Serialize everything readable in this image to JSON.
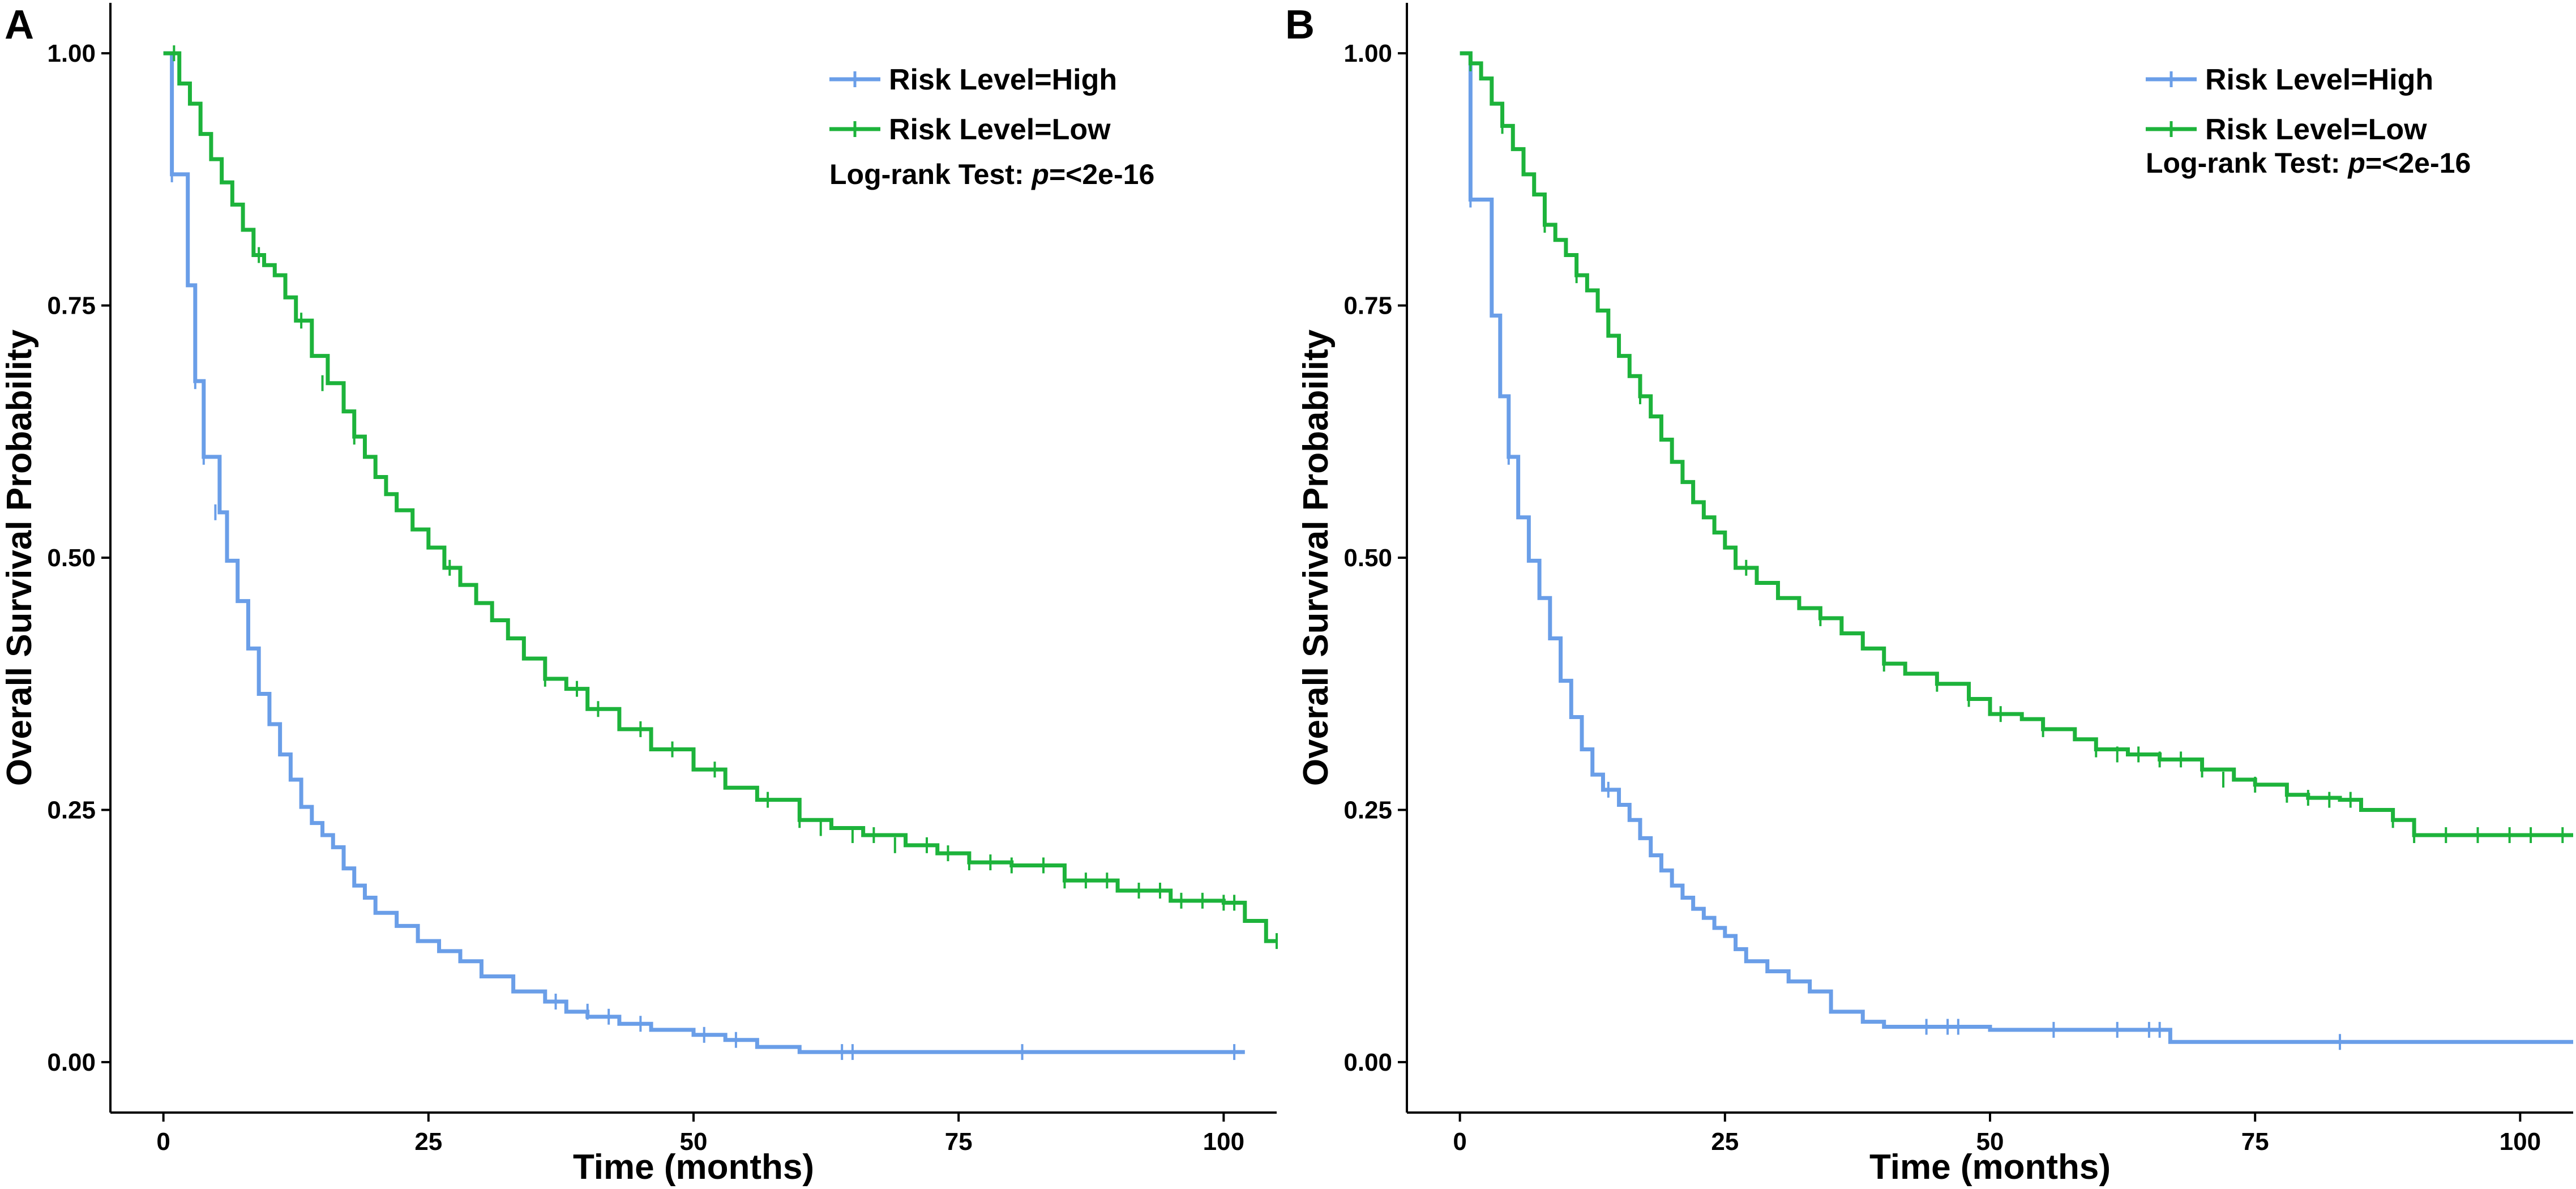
{
  "chart_data": [
    {
      "panel": "A",
      "type": "line",
      "subtype": "kaplan-meier step",
      "xlabel": "Time (months)",
      "ylabel": "Overall Survival Probability",
      "xlim": [
        -5,
        105
      ],
      "ylim": [
        -0.05,
        1.05
      ],
      "xticks": [
        0,
        25,
        50,
        75,
        100
      ],
      "xtick_labels": [
        "0",
        "25",
        "50",
        "75",
        "100"
      ],
      "yticks": [
        0.0,
        0.25,
        0.5,
        0.75,
        1.0
      ],
      "ytick_labels": [
        "0.00",
        "0.25",
        "0.50",
        "0.75",
        "1.00"
      ],
      "legend_position": "top-right",
      "annotation": {
        "prefix": "Log-rank Test: ",
        "p_symbol": "p",
        "value": "=<2e-16"
      },
      "series": [
        {
          "name": "Risk Level=High",
          "color": "#6a9ee8",
          "x": [
            0,
            0.8,
            1.5,
            2.3,
            3,
            3.8,
            4.5,
            5.3,
            6,
            7,
            8,
            9,
            10,
            11,
            12,
            13,
            14,
            15,
            16,
            17,
            18,
            19,
            20,
            22,
            24,
            26,
            28,
            30,
            33,
            36,
            38,
            40,
            43,
            46,
            50,
            53,
            56,
            60,
            65,
            70,
            80,
            90,
            100,
            102
          ],
          "y": [
            1.0,
            0.88,
            0.88,
            0.77,
            0.675,
            0.6,
            0.6,
            0.545,
            0.497,
            0.457,
            0.41,
            0.365,
            0.335,
            0.305,
            0.28,
            0.253,
            0.237,
            0.225,
            0.213,
            0.192,
            0.175,
            0.163,
            0.148,
            0.135,
            0.12,
            0.11,
            0.1,
            0.085,
            0.07,
            0.06,
            0.05,
            0.045,
            0.038,
            0.032,
            0.027,
            0.022,
            0.015,
            0.01,
            0.01,
            0.01,
            0.01,
            0.01,
            0.01,
            0.01
          ],
          "censor_x": [
            0.8,
            3,
            3.8,
            4.9,
            37,
            40,
            42,
            45,
            51,
            54,
            64,
            65,
            81,
            101
          ],
          "censor_y": [
            0.88,
            0.675,
            0.6,
            0.545,
            0.06,
            0.05,
            0.045,
            0.038,
            0.027,
            0.022,
            0.01,
            0.01,
            0.01,
            0.01
          ]
        },
        {
          "name": "Risk Level=Low",
          "color": "#1db33b",
          "x": [
            0,
            1,
            1.5,
            2.5,
            3.5,
            4.5,
            5.5,
            6.5,
            7.5,
            8.5,
            9.5,
            10.5,
            11.5,
            12.5,
            14,
            15.5,
            17,
            18,
            19,
            20,
            21,
            22,
            23.5,
            25,
            26.5,
            28,
            29.5,
            31,
            32.5,
            34,
            36,
            38,
            40,
            43,
            46,
            50,
            53,
            56,
            60,
            63,
            66,
            70,
            73,
            76,
            80,
            85,
            90,
            95,
            100,
            102,
            104,
            105
          ],
          "y": [
            1.0,
            1.0,
            0.97,
            0.95,
            0.92,
            0.895,
            0.872,
            0.85,
            0.825,
            0.8,
            0.79,
            0.78,
            0.758,
            0.735,
            0.7,
            0.673,
            0.645,
            0.62,
            0.6,
            0.58,
            0.563,
            0.547,
            0.528,
            0.51,
            0.49,
            0.473,
            0.455,
            0.438,
            0.42,
            0.4,
            0.38,
            0.37,
            0.35,
            0.33,
            0.31,
            0.29,
            0.272,
            0.26,
            0.24,
            0.232,
            0.225,
            0.215,
            0.207,
            0.198,
            0.195,
            0.18,
            0.17,
            0.16,
            0.158,
            0.14,
            0.12,
            0.12
          ],
          "censor_x": [
            1,
            9,
            13,
            15,
            18,
            27,
            36,
            39,
            41,
            45,
            48,
            52,
            57,
            60,
            62,
            65,
            67,
            69,
            72,
            74,
            76,
            78,
            80,
            83,
            85,
            87,
            89,
            92,
            94,
            96,
            98,
            100,
            101,
            105
          ],
          "censor_y": [
            1.0,
            0.8,
            0.735,
            0.673,
            0.62,
            0.49,
            0.38,
            0.37,
            0.35,
            0.33,
            0.31,
            0.29,
            0.26,
            0.24,
            0.232,
            0.225,
            0.225,
            0.215,
            0.215,
            0.207,
            0.198,
            0.198,
            0.195,
            0.195,
            0.18,
            0.18,
            0.18,
            0.17,
            0.17,
            0.16,
            0.16,
            0.158,
            0.158,
            0.12
          ]
        }
      ]
    },
    {
      "panel": "B",
      "type": "line",
      "subtype": "kaplan-meier step",
      "xlabel": "Time (months)",
      "ylabel": "Overall Survival Probability",
      "xlim": [
        -5,
        105
      ],
      "ylim": [
        -0.05,
        1.05
      ],
      "xticks": [
        0,
        25,
        50,
        75,
        100
      ],
      "xtick_labels": [
        "0",
        "25",
        "50",
        "75",
        "100"
      ],
      "yticks": [
        0.0,
        0.25,
        0.5,
        0.75,
        1.0
      ],
      "ytick_labels": [
        "0.00",
        "0.25",
        "0.50",
        "0.75",
        "1.00"
      ],
      "legend_position": "top-right",
      "annotation": {
        "prefix": "Log-rank Test: ",
        "p_symbol": "p",
        "value": "=<2e-16"
      },
      "series": [
        {
          "name": "Risk Level=High",
          "color": "#6a9ee8",
          "x": [
            0,
            0.5,
            1,
            2,
            3,
            3.8,
            4.6,
            5.5,
            6.5,
            7.5,
            8.5,
            9.5,
            10.5,
            11.5,
            12.5,
            13.5,
            15,
            16,
            17,
            18,
            19,
            20,
            21,
            22,
            23,
            24,
            25,
            26,
            27,
            29,
            31,
            33,
            35,
            38,
            40,
            45,
            50,
            60,
            67,
            70,
            80,
            90,
            100,
            105
          ],
          "y": [
            1.0,
            1.0,
            0.855,
            0.855,
            0.74,
            0.66,
            0.6,
            0.54,
            0.497,
            0.46,
            0.42,
            0.378,
            0.342,
            0.31,
            0.285,
            0.27,
            0.255,
            0.24,
            0.222,
            0.205,
            0.19,
            0.175,
            0.163,
            0.152,
            0.143,
            0.133,
            0.125,
            0.112,
            0.1,
            0.09,
            0.08,
            0.07,
            0.05,
            0.04,
            0.035,
            0.035,
            0.032,
            0.032,
            0.02,
            0.02,
            0.02,
            0.02,
            0.02,
            0.02
          ],
          "censor_x": [
            1,
            4.6,
            14,
            44,
            46,
            47,
            56,
            62,
            65,
            66,
            83
          ],
          "censor_y": [
            0.855,
            0.6,
            0.27,
            0.035,
            0.035,
            0.035,
            0.032,
            0.032,
            0.032,
            0.032,
            0.02
          ]
        },
        {
          "name": "Risk Level=Low",
          "color": "#1db33b",
          "x": [
            0,
            0.5,
            1,
            2,
            3,
            4,
            5,
            6,
            7,
            8,
            9,
            10,
            11,
            12,
            13,
            14,
            15,
            16,
            17,
            18,
            19,
            20,
            21,
            22,
            23,
            24,
            25,
            26,
            28,
            30,
            32,
            34,
            36,
            38,
            40,
            42,
            45,
            48,
            50,
            53,
            55,
            58,
            60,
            63,
            66,
            70,
            73,
            75,
            78,
            80,
            83,
            85,
            88,
            90,
            95,
            100,
            105
          ],
          "y": [
            1.0,
            1.0,
            0.99,
            0.975,
            0.95,
            0.928,
            0.905,
            0.88,
            0.86,
            0.83,
            0.815,
            0.8,
            0.78,
            0.765,
            0.745,
            0.72,
            0.7,
            0.68,
            0.66,
            0.64,
            0.617,
            0.595,
            0.575,
            0.555,
            0.54,
            0.525,
            0.51,
            0.49,
            0.475,
            0.46,
            0.45,
            0.44,
            0.425,
            0.41,
            0.395,
            0.385,
            0.375,
            0.36,
            0.345,
            0.34,
            0.33,
            0.32,
            0.31,
            0.305,
            0.3,
            0.29,
            0.28,
            0.275,
            0.265,
            0.262,
            0.26,
            0.25,
            0.24,
            0.225,
            0.225,
            0.225,
            0.225
          ],
          "censor_x": [
            1,
            4,
            8,
            11,
            17,
            27,
            34,
            40,
            45,
            48,
            51,
            55,
            60,
            62,
            64,
            66,
            68,
            70,
            72,
            75,
            78,
            80,
            82,
            84,
            88,
            90,
            93,
            96,
            99,
            101,
            104
          ],
          "censor_y": [
            0.99,
            0.928,
            0.83,
            0.78,
            0.66,
            0.49,
            0.44,
            0.395,
            0.375,
            0.36,
            0.345,
            0.33,
            0.31,
            0.305,
            0.305,
            0.3,
            0.3,
            0.29,
            0.28,
            0.275,
            0.265,
            0.262,
            0.26,
            0.26,
            0.24,
            0.225,
            0.225,
            0.225,
            0.225,
            0.225,
            0.225
          ]
        }
      ]
    }
  ]
}
